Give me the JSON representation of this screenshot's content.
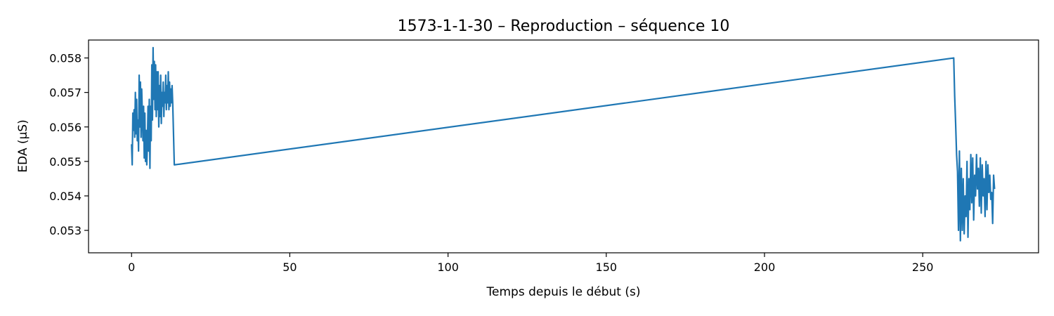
{
  "chart_data": {
    "type": "line",
    "title": "1573-1-1-30 – Reproduction – séquence 10",
    "xlabel": "Temps depuis le début (s)",
    "ylabel": "EDA (µS)",
    "xlim": [
      -13.6,
      286.6
    ],
    "ylim": [
      0.05235,
      0.05852
    ],
    "xticks": [
      0,
      50,
      100,
      150,
      200,
      250
    ],
    "xtick_labels": [
      "0",
      "50",
      "100",
      "150",
      "200",
      "250"
    ],
    "yticks": [
      0.053,
      0.054,
      0.055,
      0.056,
      0.057,
      0.058
    ],
    "ytick_labels": [
      "0.053",
      "0.054",
      "0.055",
      "0.056",
      "0.057",
      "0.058"
    ],
    "grid": false,
    "line_color": "#1f77b4",
    "series": [
      {
        "x": [
          0.0,
          0.2,
          0.4,
          0.6,
          0.8,
          1.0,
          1.2,
          1.4,
          1.6,
          1.8,
          2.0,
          2.2,
          2.4,
          2.6,
          2.8,
          3.0,
          3.2,
          3.4,
          3.6,
          3.8,
          4.0,
          4.2,
          4.4,
          4.6,
          4.8,
          5.0,
          5.2,
          5.4,
          5.6,
          5.8,
          6.0,
          6.2,
          6.4,
          6.6,
          6.8,
          7.0,
          7.2,
          7.4,
          7.6,
          7.8,
          8.0,
          8.2,
          8.4,
          8.6,
          8.8,
          9.0,
          9.2,
          9.4,
          9.6,
          9.8,
          10.0,
          10.2,
          10.4,
          10.6,
          10.8,
          11.0,
          11.2,
          11.4,
          11.6,
          11.8,
          12.0,
          12.2,
          12.4,
          12.6,
          12.8,
          13.0,
          13.5,
          259.8,
          260.1,
          260.4,
          260.7,
          261.0,
          261.3,
          261.6,
          261.9,
          262.2,
          262.5,
          262.8,
          263.1,
          263.4,
          263.7,
          264.0,
          264.3,
          264.6,
          264.9,
          265.2,
          265.5,
          265.8,
          266.1,
          266.4,
          266.7,
          267.0,
          267.3,
          267.6,
          267.9,
          268.2,
          268.5,
          268.8,
          269.1,
          269.4,
          269.7,
          270.0,
          270.3,
          270.6,
          270.9,
          271.2,
          271.5,
          271.8,
          272.1,
          272.4,
          272.7
        ],
        "y": [
          0.0555,
          0.0549,
          0.0564,
          0.0559,
          0.0565,
          0.0557,
          0.057,
          0.0558,
          0.0568,
          0.0556,
          0.0562,
          0.0553,
          0.0575,
          0.056,
          0.0573,
          0.0557,
          0.0571,
          0.0564,
          0.0556,
          0.0566,
          0.0551,
          0.0564,
          0.055,
          0.0559,
          0.0549,
          0.0555,
          0.0566,
          0.0553,
          0.0568,
          0.0548,
          0.0566,
          0.0556,
          0.0578,
          0.0562,
          0.0583,
          0.0568,
          0.0579,
          0.0565,
          0.0578,
          0.0563,
          0.0576,
          0.0565,
          0.0576,
          0.056,
          0.0572,
          0.0563,
          0.0575,
          0.0561,
          0.057,
          0.0566,
          0.0573,
          0.0563,
          0.057,
          0.0567,
          0.0575,
          0.0565,
          0.0572,
          0.0567,
          0.0576,
          0.0565,
          0.0573,
          0.0566,
          0.0571,
          0.0567,
          0.0572,
          0.0567,
          0.0549,
          0.058,
          0.0569,
          0.0561,
          0.0552,
          0.0547,
          0.053,
          0.0553,
          0.0527,
          0.0548,
          0.053,
          0.0545,
          0.0529,
          0.054,
          0.0534,
          0.055,
          0.0528,
          0.0545,
          0.0536,
          0.0552,
          0.0538,
          0.0551,
          0.0533,
          0.0546,
          0.054,
          0.0552,
          0.0542,
          0.0548,
          0.0537,
          0.0551,
          0.0535,
          0.0549,
          0.054,
          0.0545,
          0.0534,
          0.055,
          0.0536,
          0.0549,
          0.0541,
          0.0546,
          0.0539,
          0.0541,
          0.0532,
          0.0546,
          0.0542
        ]
      }
    ]
  }
}
